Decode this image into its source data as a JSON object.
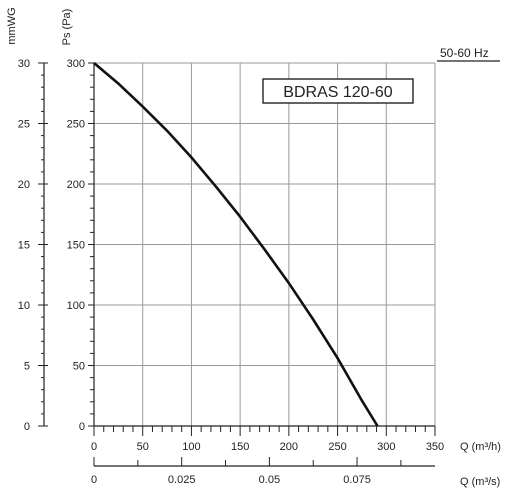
{
  "chart_data": {
    "type": "line",
    "model_label": "BDRAS 120-60",
    "frequency_label": "50-60 Hz",
    "ylabel_ps": "Ps (Pa)",
    "ylabel_mmwg": "mmWG",
    "xlabel_m3h": "Q (m³/h)",
    "xlabel_m3s": "Q (m³/s)",
    "x_m3h_ticks": [
      "0",
      "50",
      "100",
      "150",
      "200",
      "250",
      "300",
      "350"
    ],
    "x_m3s_ticks": [
      "0",
      "0.025",
      "0.05",
      "0.075"
    ],
    "y_pa_ticks": [
      "0",
      "50",
      "100",
      "150",
      "200",
      "250",
      "300"
    ],
    "y_mmwg_ticks": [
      "0",
      "5",
      "10",
      "15",
      "20",
      "25",
      "30"
    ],
    "xlim_m3h": [
      0,
      350
    ],
    "ylim_pa": [
      0,
      300
    ],
    "grid": true,
    "series": [
      {
        "x": [
          0,
          25,
          50,
          75,
          100,
          125,
          150,
          175,
          200,
          225,
          250,
          275,
          291
        ],
        "y": [
          300,
          283,
          264,
          244,
          222,
          198,
          173,
          146,
          118,
          88,
          56,
          21,
          0
        ]
      }
    ]
  }
}
